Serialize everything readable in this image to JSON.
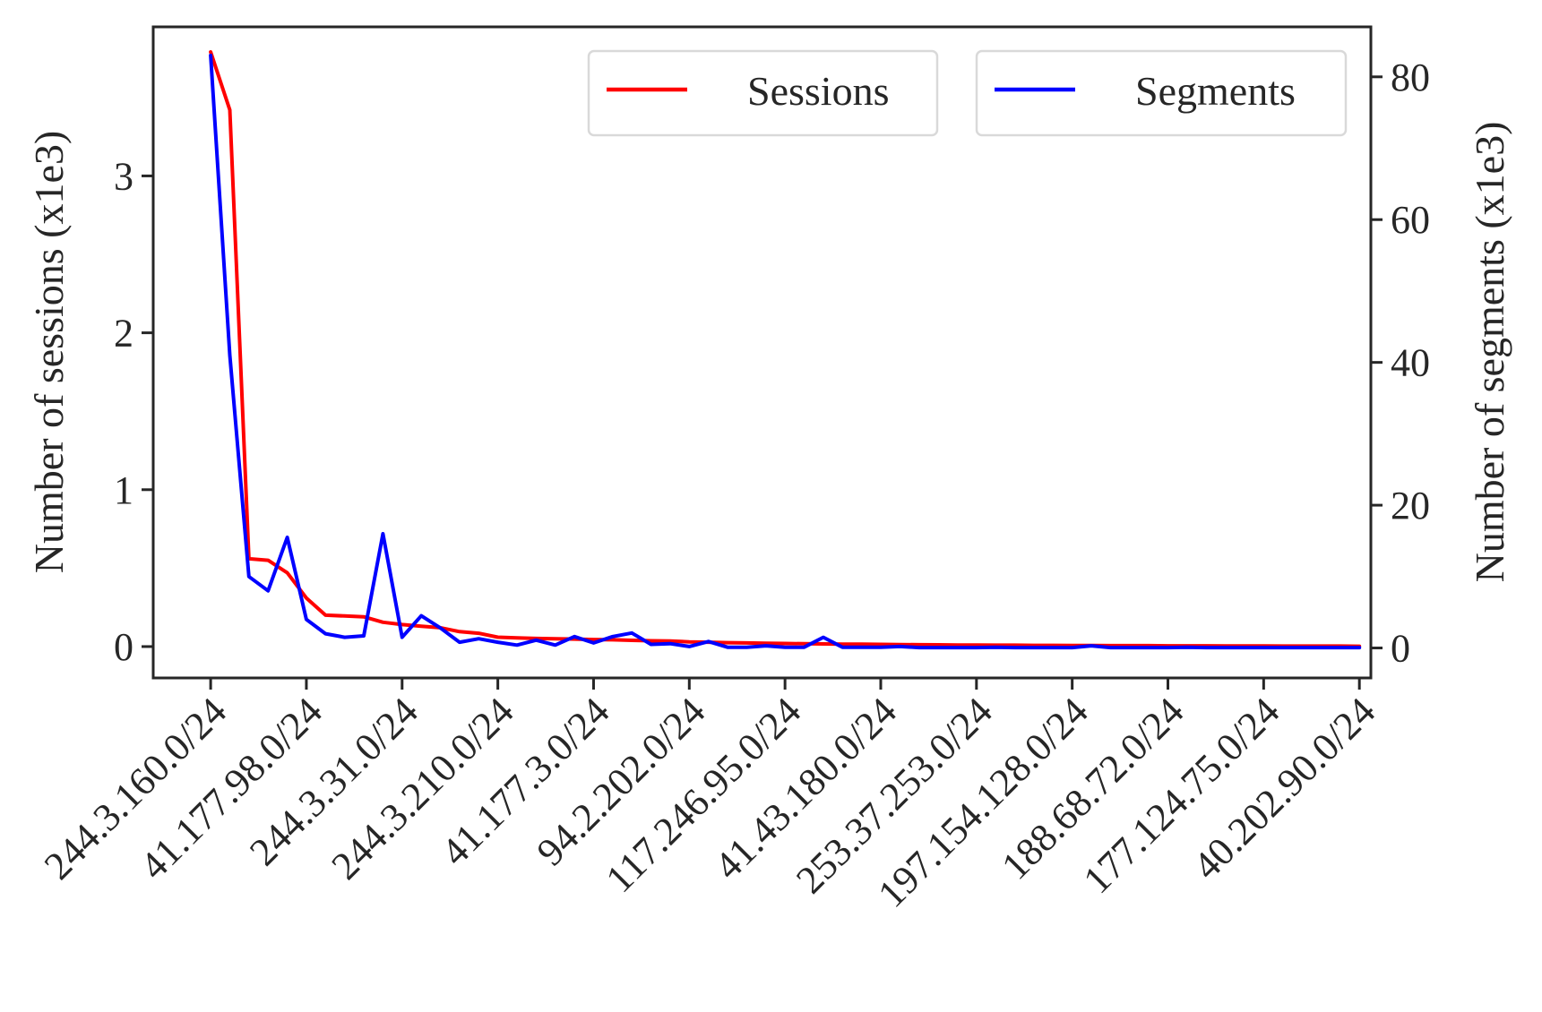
{
  "chart_data": {
    "type": "line",
    "xlabel": "",
    "ylabel": "Number of sessions (x1e3)",
    "y2label": "Number of segments (x1e3)",
    "categories": [
      "244.3.160.0/24",
      "41.177.98.0/24",
      "244.3.31.0/24",
      "244.3.210.0/24",
      "41.177.3.0/24",
      "94.2.202.0/24",
      "117.246.95.0/24",
      "41.43.180.0/24",
      "253.37.253.0/24",
      "197.154.128.0/24",
      "188.68.72.0/24",
      "177.124.75.0/24",
      "40.202.90.0/24"
    ],
    "category_positions": [
      0,
      5,
      10,
      15,
      20,
      25,
      30,
      35,
      40,
      45,
      50,
      55,
      60
    ],
    "ylim": [
      -0.2,
      3.95
    ],
    "yticks": [
      0,
      1,
      2,
      3
    ],
    "y2lim": [
      -4.2,
      87
    ],
    "y2ticks": [
      0,
      20,
      40,
      60,
      80
    ],
    "xlim": [
      -3,
      60.6
    ],
    "series": [
      {
        "name": "Sessions",
        "axis": "left",
        "color": "#ff0000",
        "x": [
          0,
          1,
          2,
          3,
          4,
          5,
          6,
          7,
          8,
          9,
          10,
          11,
          12,
          13,
          14,
          15,
          16,
          17,
          18,
          19,
          20,
          21,
          22,
          23,
          24,
          25,
          26,
          27,
          28,
          29,
          30,
          31,
          32,
          33,
          34,
          35,
          36,
          37,
          38,
          39,
          40,
          41,
          42,
          43,
          44,
          45,
          46,
          47,
          48,
          49,
          50,
          51,
          52,
          53,
          54,
          55,
          56,
          57,
          58,
          59,
          60
        ],
        "values": [
          3.79,
          3.42,
          0.56,
          0.55,
          0.47,
          0.31,
          0.2,
          0.195,
          0.19,
          0.155,
          0.14,
          0.13,
          0.12,
          0.095,
          0.085,
          0.06,
          0.055,
          0.052,
          0.05,
          0.048,
          0.045,
          0.043,
          0.04,
          0.037,
          0.035,
          0.03,
          0.028,
          0.025,
          0.023,
          0.021,
          0.02,
          0.018,
          0.017,
          0.016,
          0.015,
          0.014,
          0.013,
          0.012,
          0.011,
          0.01,
          0.01,
          0.009,
          0.009,
          0.008,
          0.008,
          0.007,
          0.007,
          0.006,
          0.006,
          0.006,
          0.005,
          0.005,
          0.005,
          0.004,
          0.004,
          0.004,
          0.003,
          0.003,
          0.003,
          0.003,
          0.002
        ]
      },
      {
        "name": "Segments",
        "axis": "right",
        "color": "#0000ff",
        "x": [
          0,
          1,
          2,
          3,
          4,
          5,
          6,
          7,
          8,
          9,
          10,
          11,
          12,
          13,
          14,
          15,
          16,
          17,
          18,
          19,
          20,
          21,
          22,
          23,
          24,
          25,
          26,
          27,
          28,
          29,
          30,
          31,
          32,
          33,
          34,
          35,
          36,
          37,
          38,
          39,
          40,
          41,
          42,
          43,
          44,
          45,
          46,
          47,
          48,
          49,
          50,
          51,
          52,
          53,
          54,
          55,
          56,
          57,
          58,
          59,
          60
        ],
        "values": [
          83,
          41,
          10,
          8,
          15.5,
          4,
          2,
          1.5,
          1.7,
          16,
          1.5,
          4.5,
          2.8,
          0.8,
          1.3,
          0.8,
          0.4,
          1.1,
          0.4,
          1.6,
          0.7,
          1.6,
          2.1,
          0.5,
          0.6,
          0.2,
          0.9,
          0.1,
          0.1,
          0.3,
          0.1,
          0.1,
          1.5,
          0.1,
          0.1,
          0.1,
          0.2,
          0.05,
          0.05,
          0.05,
          0.05,
          0.1,
          0.05,
          0.05,
          0.05,
          0.05,
          0.3,
          0.05,
          0.05,
          0.05,
          0.05,
          0.1,
          0.05,
          0.05,
          0.05,
          0.05,
          0.05,
          0.05,
          0.05,
          0.05,
          0.05
        ]
      }
    ],
    "legend": {
      "position": "top-right"
    }
  }
}
